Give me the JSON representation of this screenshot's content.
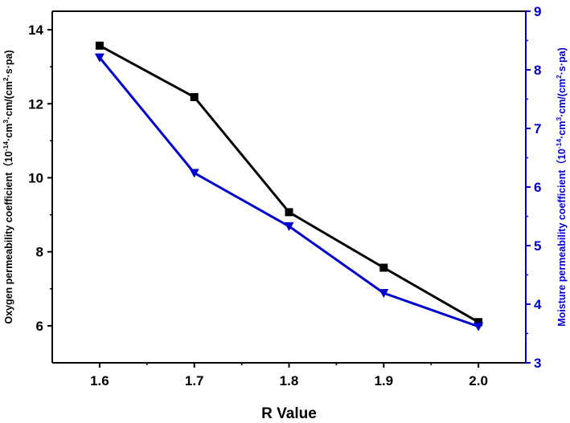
{
  "chart_data": {
    "type": "line",
    "xlabel": "R Value",
    "ylabel_left": {
      "main": "Oxygen permeability coefficient（10",
      "exp": "-14",
      "mid1": "·cm",
      "sup1": "3",
      "mid2": "·cm/(cm",
      "sup2": "2",
      "end": "·s·pa)"
    },
    "ylabel_right": {
      "main": "Moisture permeability coefficient（10",
      "exp": "-14",
      "mid1": "·cm",
      "sup1": "3",
      "mid2": "·cm/(cm",
      "sup2": "2",
      "end": "·s·pa)"
    },
    "x": [
      1.6,
      1.7,
      1.8,
      1.9,
      2.0
    ],
    "x_ticks": [
      "1.6",
      "1.7",
      "1.8",
      "1.9",
      "2.0"
    ],
    "xlim": [
      1.55,
      2.05
    ],
    "y_left_ticks": [
      "6",
      "8",
      "10",
      "12",
      "14"
    ],
    "y_left_lim": [
      5,
      14.5
    ],
    "y_right_ticks": [
      "3",
      "4",
      "5",
      "6",
      "7",
      "8",
      "9"
    ],
    "y_right_lim": [
      3,
      9
    ],
    "series": [
      {
        "axis": "left",
        "marker": "square",
        "color": "#000000",
        "values": [
          13.57,
          12.18,
          9.07,
          7.57,
          6.1
        ]
      },
      {
        "axis": "right",
        "marker": "triangle-down",
        "color": "#0000cc",
        "values": [
          8.21,
          6.24,
          5.33,
          4.19,
          3.62
        ]
      }
    ],
    "right_axis_color": "#0000cc",
    "grid": false,
    "legend": "none"
  }
}
